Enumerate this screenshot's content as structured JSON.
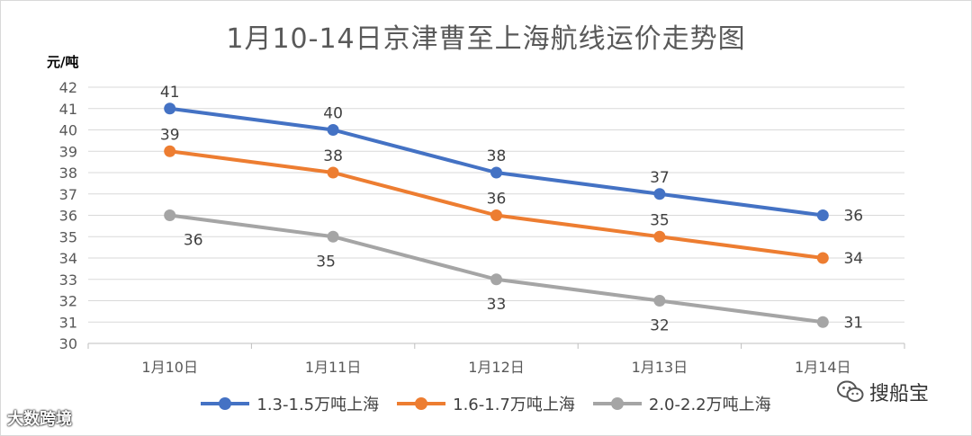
{
  "chart_data": {
    "type": "line",
    "title": "1月10-14日京津曹至上海航线运价走势图",
    "ylabel": "元/吨",
    "xlabel": "",
    "categories": [
      "1月10日",
      "1月11日",
      "1月12日",
      "1月13日",
      "1月14日"
    ],
    "ylim": [
      30,
      42
    ],
    "yticks": [
      30,
      31,
      32,
      33,
      34,
      35,
      36,
      37,
      38,
      39,
      40,
      41,
      42
    ],
    "grid": true,
    "legend_position": "bottom",
    "series": [
      {
        "name": "1.3-1.5万吨上海",
        "color": "#4472C4",
        "values": [
          41,
          40,
          38,
          37,
          36
        ]
      },
      {
        "name": "1.6-1.7万吨上海",
        "color": "#ED7D31",
        "values": [
          39,
          38,
          36,
          35,
          34
        ]
      },
      {
        "name": "2.0-2.2万吨上海",
        "color": "#A5A5A5",
        "values": [
          36,
          35,
          33,
          32,
          31
        ]
      }
    ]
  },
  "watermarks": {
    "left": "大数跨境",
    "right": "搜船宝"
  }
}
